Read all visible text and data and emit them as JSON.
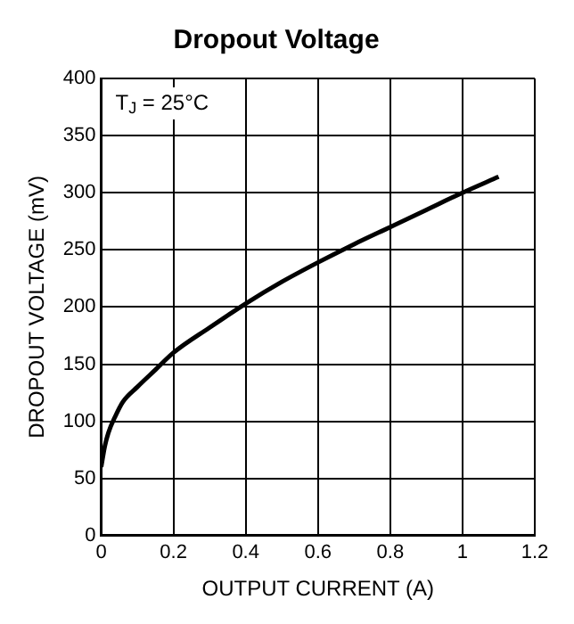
{
  "chart_data": {
    "type": "line",
    "title": "Dropout Voltage",
    "xlabel": "OUTPUT CURRENT (A)",
    "ylabel": "DROPOUT VOLTAGE (mV)",
    "annotations": [
      "T$_{J}$ = 25°C"
    ],
    "x": [
      0,
      0.01,
      0.02,
      0.04,
      0.06,
      0.1,
      0.15,
      0.2,
      0.3,
      0.4,
      0.5,
      0.6,
      0.7,
      0.8,
      0.9,
      1.0,
      1.1
    ],
    "series": [
      {
        "color": "#000000",
        "values": [
          60,
          78,
          90,
          105,
          117,
          130,
          145,
          160,
          182,
          203,
          222,
          239,
          255,
          270,
          285,
          300,
          314
        ]
      }
    ],
    "xlim": [
      0,
      1.2
    ],
    "xticks": [
      0,
      0.2,
      0.4,
      0.6,
      0.8,
      1,
      1.2
    ],
    "ylim": [
      0,
      400
    ],
    "yticks": [
      0,
      50,
      100,
      150,
      200,
      250,
      300,
      350,
      400
    ],
    "grid": true,
    "legend": false,
    "marker": "none",
    "line_style": "solid"
  }
}
